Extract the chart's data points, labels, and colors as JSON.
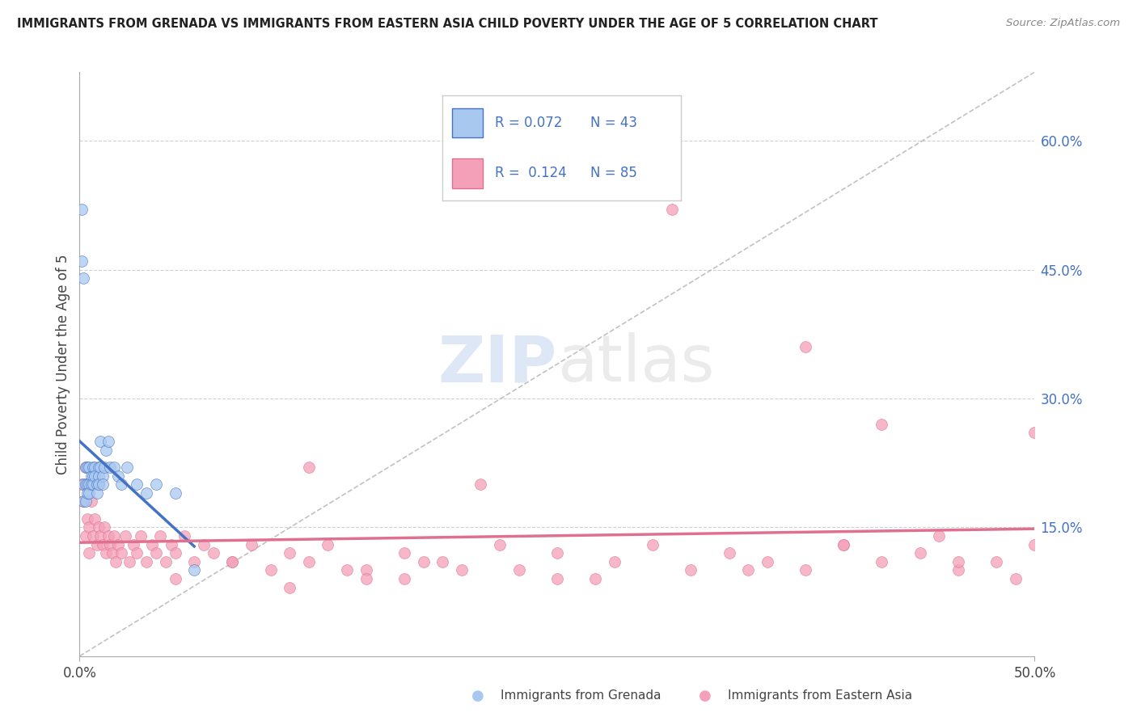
{
  "title": "IMMIGRANTS FROM GRENADA VS IMMIGRANTS FROM EASTERN ASIA CHILD POVERTY UNDER THE AGE OF 5 CORRELATION CHART",
  "source": "Source: ZipAtlas.com",
  "ylabel": "Child Poverty Under the Age of 5",
  "y_ticks": [
    0.15,
    0.3,
    0.45,
    0.6
  ],
  "y_tick_labels": [
    "15.0%",
    "30.0%",
    "45.0%",
    "60.0%"
  ],
  "x_lim": [
    0.0,
    0.5
  ],
  "y_lim": [
    0.0,
    0.68
  ],
  "color_grenada": "#a8c8f0",
  "color_eastern_asia": "#f4a0b8",
  "color_grenada_line": "#4472c4",
  "color_eastern_asia_line": "#e07090",
  "color_diag_line": "#bbbbbb",
  "label_grenada": "Immigrants from Grenada",
  "label_eastern_asia": "Immigrants from Eastern Asia",
  "watermark_zip": "ZIP",
  "watermark_atlas": "atlas",
  "legend_r1": "R = 0.072",
  "legend_n1": "N = 43",
  "legend_r2": "R =  0.124",
  "legend_n2": "N = 85",
  "grenada_x": [
    0.001,
    0.001,
    0.002,
    0.002,
    0.002,
    0.003,
    0.003,
    0.003,
    0.004,
    0.004,
    0.004,
    0.005,
    0.005,
    0.005,
    0.006,
    0.006,
    0.007,
    0.007,
    0.007,
    0.008,
    0.008,
    0.009,
    0.009,
    0.01,
    0.01,
    0.01,
    0.011,
    0.011,
    0.012,
    0.012,
    0.013,
    0.014,
    0.015,
    0.016,
    0.018,
    0.02,
    0.022,
    0.025,
    0.03,
    0.035,
    0.04,
    0.05,
    0.06
  ],
  "grenada_y": [
    0.52,
    0.46,
    0.44,
    0.2,
    0.18,
    0.2,
    0.22,
    0.18,
    0.2,
    0.22,
    0.19,
    0.22,
    0.2,
    0.19,
    0.21,
    0.2,
    0.22,
    0.21,
    0.2,
    0.22,
    0.21,
    0.2,
    0.19,
    0.22,
    0.21,
    0.2,
    0.25,
    0.22,
    0.21,
    0.2,
    0.22,
    0.24,
    0.25,
    0.22,
    0.22,
    0.21,
    0.2,
    0.22,
    0.2,
    0.19,
    0.2,
    0.19,
    0.1
  ],
  "eastern_asia_x": [
    0.001,
    0.002,
    0.003,
    0.003,
    0.004,
    0.005,
    0.005,
    0.006,
    0.007,
    0.008,
    0.009,
    0.01,
    0.01,
    0.011,
    0.012,
    0.013,
    0.014,
    0.015,
    0.016,
    0.017,
    0.018,
    0.019,
    0.02,
    0.022,
    0.024,
    0.026,
    0.028,
    0.03,
    0.032,
    0.035,
    0.038,
    0.04,
    0.042,
    0.045,
    0.048,
    0.05,
    0.055,
    0.06,
    0.065,
    0.07,
    0.08,
    0.09,
    0.1,
    0.11,
    0.12,
    0.13,
    0.15,
    0.17,
    0.19,
    0.21,
    0.23,
    0.25,
    0.27,
    0.3,
    0.32,
    0.34,
    0.36,
    0.38,
    0.4,
    0.42,
    0.44,
    0.46,
    0.48,
    0.5,
    0.31,
    0.38,
    0.42,
    0.45,
    0.49,
    0.5,
    0.12,
    0.15,
    0.18,
    0.2,
    0.22,
    0.25,
    0.28,
    0.35,
    0.4,
    0.46,
    0.05,
    0.08,
    0.11,
    0.14,
    0.17
  ],
  "eastern_asia_y": [
    0.2,
    0.18,
    0.22,
    0.14,
    0.16,
    0.15,
    0.12,
    0.18,
    0.14,
    0.16,
    0.13,
    0.15,
    0.2,
    0.14,
    0.13,
    0.15,
    0.12,
    0.14,
    0.13,
    0.12,
    0.14,
    0.11,
    0.13,
    0.12,
    0.14,
    0.11,
    0.13,
    0.12,
    0.14,
    0.11,
    0.13,
    0.12,
    0.14,
    0.11,
    0.13,
    0.12,
    0.14,
    0.11,
    0.13,
    0.12,
    0.11,
    0.13,
    0.1,
    0.12,
    0.11,
    0.13,
    0.1,
    0.12,
    0.11,
    0.2,
    0.1,
    0.12,
    0.09,
    0.13,
    0.1,
    0.12,
    0.11,
    0.1,
    0.13,
    0.11,
    0.12,
    0.1,
    0.11,
    0.13,
    0.52,
    0.36,
    0.27,
    0.14,
    0.09,
    0.26,
    0.22,
    0.09,
    0.11,
    0.1,
    0.13,
    0.09,
    0.11,
    0.1,
    0.13,
    0.11,
    0.09,
    0.11,
    0.08,
    0.1,
    0.09
  ]
}
